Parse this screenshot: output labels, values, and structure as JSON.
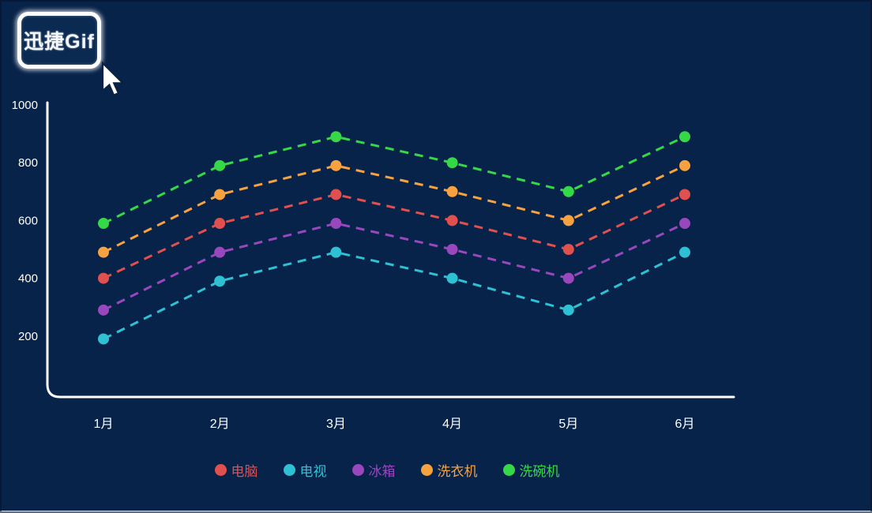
{
  "watermark": {
    "text": "迅捷Gif"
  },
  "colors": {
    "background": "#07234a",
    "axis": "#ffffff",
    "text": "#ffffff",
    "bottom_edge": "#dde1ec"
  },
  "cursor": {
    "icon": "arrow-pointer"
  },
  "chart_data": {
    "type": "line",
    "title": "",
    "categories": [
      "1月",
      "2月",
      "3月",
      "4月",
      "5月",
      "6月"
    ],
    "series": [
      {
        "name": "电脑",
        "color": "#e0504e",
        "values": [
          400,
          590,
          690,
          600,
          500,
          690
        ]
      },
      {
        "name": "电视",
        "color": "#2ec1d3",
        "values": [
          190,
          390,
          490,
          400,
          290,
          490
        ]
      },
      {
        "name": "冰箱",
        "color": "#9847bd",
        "values": [
          290,
          490,
          590,
          500,
          400,
          590
        ]
      },
      {
        "name": "洗衣机",
        "color": "#f7a23f",
        "values": [
          490,
          690,
          790,
          700,
          600,
          790
        ]
      },
      {
        "name": "洗碗机",
        "color": "#35d947",
        "values": [
          590,
          790,
          890,
          800,
          700,
          890
        ]
      }
    ],
    "y_ticks": [
      1000,
      800,
      600,
      400,
      200
    ],
    "ylim": [
      0,
      1000
    ],
    "xlabel": "",
    "ylabel": "",
    "line_style": "dashed",
    "marker": "circle",
    "grid": false,
    "legend_position": "bottom"
  }
}
